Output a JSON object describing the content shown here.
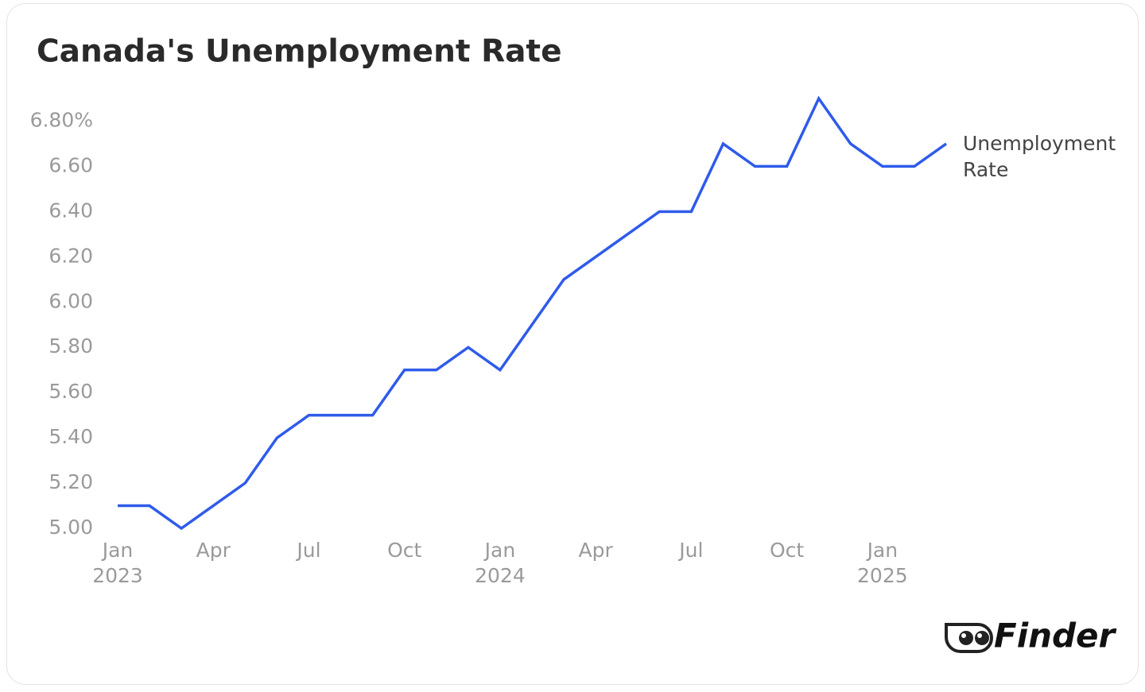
{
  "chart_data": {
    "type": "line",
    "title": "Canada's Unemployment Rate",
    "x": [
      "2023-01",
      "2023-02",
      "2023-03",
      "2023-04",
      "2023-05",
      "2023-06",
      "2023-07",
      "2023-08",
      "2023-09",
      "2023-10",
      "2023-11",
      "2023-12",
      "2024-01",
      "2024-02",
      "2024-03",
      "2024-04",
      "2024-05",
      "2024-06",
      "2024-07",
      "2024-08",
      "2024-09",
      "2024-10",
      "2024-11",
      "2024-12",
      "2025-01",
      "2025-02",
      "2025-03"
    ],
    "series": [
      {
        "name": "Unemployment Rate",
        "color": "#2f5bea",
        "values": [
          5.1,
          5.1,
          5.0,
          5.1,
          5.2,
          5.4,
          5.5,
          5.5,
          5.5,
          5.7,
          5.7,
          5.8,
          5.7,
          5.9,
          6.1,
          6.2,
          6.3,
          6.4,
          6.4,
          6.7,
          6.6,
          6.6,
          6.9,
          6.7,
          6.6,
          6.6,
          6.7
        ]
      }
    ],
    "ylim": [
      5.0,
      6.9
    ],
    "yticks": [
      {
        "value": 5.0,
        "label": "5.00"
      },
      {
        "value": 5.2,
        "label": "5.20"
      },
      {
        "value": 5.4,
        "label": "5.40"
      },
      {
        "value": 5.6,
        "label": "5.60"
      },
      {
        "value": 5.8,
        "label": "5.80"
      },
      {
        "value": 6.0,
        "label": "6.00"
      },
      {
        "value": 6.2,
        "label": "6.20"
      },
      {
        "value": 6.4,
        "label": "6.40"
      },
      {
        "value": 6.6,
        "label": "6.60"
      },
      {
        "value": 6.8,
        "label": "6.80%"
      }
    ],
    "xticks": [
      {
        "value": "2023-01",
        "label": "Jan",
        "year": "2023"
      },
      {
        "value": "2023-04",
        "label": "Apr"
      },
      {
        "value": "2023-07",
        "label": "Jul"
      },
      {
        "value": "2023-10",
        "label": "Oct"
      },
      {
        "value": "2024-01",
        "label": "Jan",
        "year": "2024"
      },
      {
        "value": "2024-04",
        "label": "Apr"
      },
      {
        "value": "2024-07",
        "label": "Jul"
      },
      {
        "value": "2024-10",
        "label": "Oct"
      },
      {
        "value": "2025-01",
        "label": "Jan",
        "year": "2025"
      }
    ],
    "grid": false,
    "brand": "Finder"
  }
}
